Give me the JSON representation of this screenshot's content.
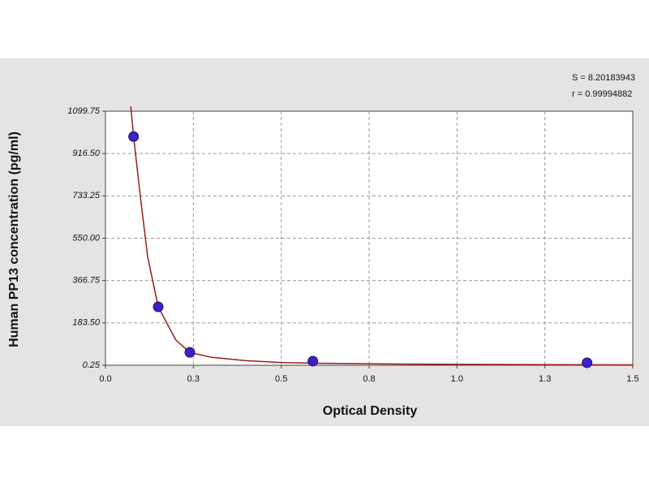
{
  "chart_data": {
    "type": "scatter",
    "x_label": "Optical Density",
    "y_label": "Human PP13 concentration (pg/ml)",
    "annotations": [
      "S = 8.20183943",
      "r = 0.99994882"
    ],
    "xlim": [
      0,
      1.5
    ],
    "ylim": [
      0.25,
      1099.75
    ],
    "xticks": [
      {
        "value": 0,
        "label": "0.0"
      },
      {
        "value": 0.25,
        "label": "0.3"
      },
      {
        "value": 0.5,
        "label": "0.5"
      },
      {
        "value": 0.75,
        "label": "0.8"
      },
      {
        "value": 1,
        "label": "1.0"
      },
      {
        "value": 1.25,
        "label": "1.3"
      },
      1.5
    ],
    "yticks": [
      0.25,
      {
        "value": 183.5,
        "label": "183.50"
      },
      366.75,
      {
        "value": 550,
        "label": "550.00"
      },
      733.25,
      {
        "value": 916.5,
        "label": "916.50"
      },
      1099.75
    ],
    "grid": true,
    "points": {
      "color": "#3b22c4",
      "x": [
        0.08,
        0.15,
        0.24,
        0.59,
        1.37
      ],
      "y": [
        990,
        253,
        56,
        18,
        11
      ]
    },
    "fit": {
      "color": "#9b1c1c",
      "x": [
        0.072,
        0.08,
        0.1,
        0.12,
        0.15,
        0.2,
        0.24,
        0.3,
        0.4,
        0.5,
        0.6,
        0.8,
        1.0,
        1.25,
        1.5
      ],
      "y": [
        1120,
        990,
        720,
        470,
        253,
        110,
        56,
        35,
        20,
        12,
        9,
        6,
        4,
        3,
        2
      ]
    }
  }
}
